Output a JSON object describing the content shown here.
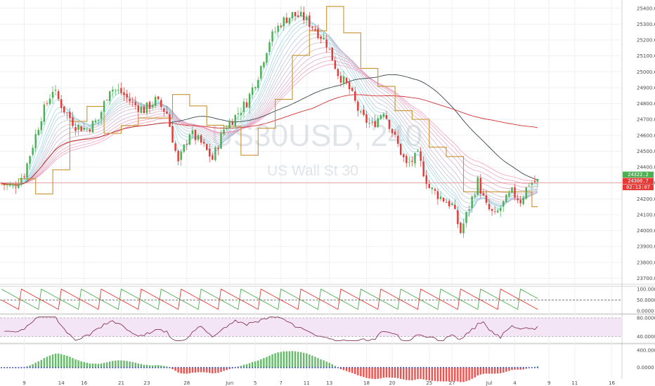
{
  "watermark": {
    "symbol": "US30USD, 240",
    "name": "US Wall St 30"
  },
  "colors": {
    "up": "#4caf50",
    "down": "#e53935",
    "ma_fast_start": "#80deea",
    "ma_slow_end": "#f48fb1",
    "sma_long": "#d32f2f",
    "sma_mid": "#37474f",
    "stop_line": "#c8922e",
    "price_line": "#e57373",
    "rsi_bg": "#f3e5f5",
    "rsi_line": "#7b2244",
    "osc_up": "#66bb6a",
    "osc_down": "#ef5350",
    "osc_dots": "#3f51b5"
  },
  "price_tags": [
    {
      "text": "24322.2",
      "color": "#4caf50"
    },
    {
      "text": "24300.7",
      "color": "#e53935"
    },
    {
      "text": "02:13:07",
      "color": "#e53935"
    }
  ],
  "chart_data": {
    "type": "line",
    "title": "US30USD, 240",
    "subtitle": "US Wall St 30",
    "panes": [
      {
        "name": "price",
        "kind": "candlestick",
        "ylim": [
          23680,
          25430
        ],
        "yticks": [
          23700,
          23800,
          23900,
          24000,
          24100,
          24200,
          24300,
          24400,
          24500,
          24600,
          24700,
          24800,
          24900,
          25000,
          25100,
          25200,
          25300,
          25400
        ],
        "current_price": 24300.7,
        "trend_points": [
          [
            0,
            24300
          ],
          [
            4,
            24270
          ],
          [
            8,
            24360
          ],
          [
            14,
            24720
          ],
          [
            18,
            24890
          ],
          [
            22,
            24760
          ],
          [
            26,
            24660
          ],
          [
            30,
            24640
          ],
          [
            34,
            24700
          ],
          [
            38,
            24900
          ],
          [
            42,
            24870
          ],
          [
            46,
            24800
          ],
          [
            50,
            24760
          ],
          [
            54,
            24820
          ],
          [
            58,
            24740
          ],
          [
            62,
            24420
          ],
          [
            66,
            24620
          ],
          [
            70,
            24550
          ],
          [
            74,
            24450
          ],
          [
            78,
            24640
          ],
          [
            82,
            24720
          ],
          [
            86,
            24810
          ],
          [
            90,
            24980
          ],
          [
            94,
            25200
          ],
          [
            98,
            25310
          ],
          [
            102,
            25360
          ],
          [
            106,
            25340
          ],
          [
            110,
            25270
          ],
          [
            114,
            25180
          ],
          [
            118,
            24990
          ],
          [
            122,
            24890
          ],
          [
            126,
            24720
          ],
          [
            130,
            24660
          ],
          [
            134,
            24760
          ],
          [
            138,
            24580
          ],
          [
            142,
            24410
          ],
          [
            146,
            24470
          ],
          [
            150,
            24270
          ],
          [
            154,
            24210
          ],
          [
            158,
            24160
          ],
          [
            161,
            23990
          ],
          [
            164,
            24150
          ],
          [
            167,
            24310
          ],
          [
            170,
            24150
          ],
          [
            173,
            24090
          ],
          [
            176,
            24170
          ],
          [
            179,
            24240
          ],
          [
            182,
            24190
          ],
          [
            185,
            24300
          ],
          [
            188,
            24310
          ]
        ]
      },
      {
        "name": "sawtooth",
        "ylim": [
          0,
          100
        ],
        "yticks": [
          0,
          50,
          100
        ],
        "level": 50
      },
      {
        "name": "rsi",
        "ylim": [
          30,
          83
        ],
        "yticks": [
          40,
          80
        ]
      },
      {
        "name": "oscillator",
        "ylim": [
          -200,
          500
        ],
        "yticks": [
          0,
          400
        ]
      }
    ],
    "x_ticks": [
      "9",
      "14",
      "16",
      "21",
      "23",
      "28",
      "Jun",
      "5",
      "7",
      "11",
      "13",
      "18",
      "20",
      "25",
      "27",
      "Jul",
      "4",
      "9",
      "11",
      "16"
    ]
  }
}
